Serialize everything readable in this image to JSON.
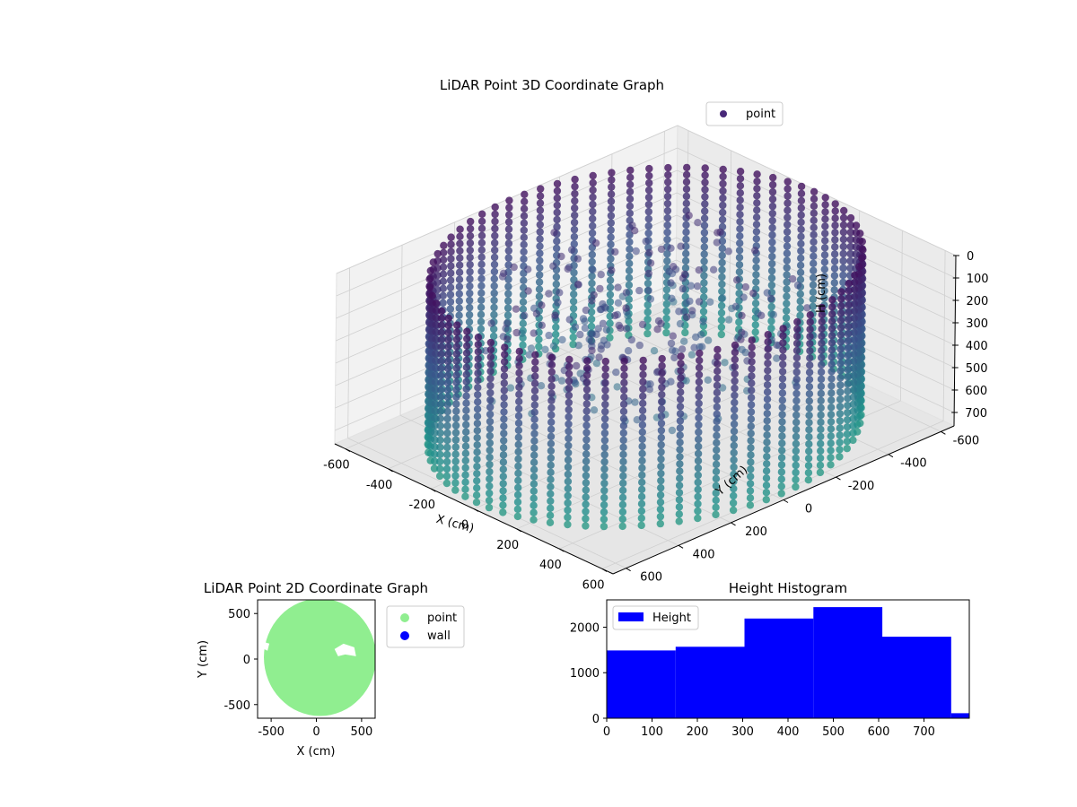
{
  "chart_data": [
    {
      "type": "scatter",
      "projection": "3d",
      "title": "LiDAR Point 3D Coordinate Graph",
      "xlabel": "X (cm)",
      "ylabel": "Y (cm)",
      "zlabel": "H (cm)",
      "xlim": [
        -650,
        650
      ],
      "ylim": [
        -650,
        650
      ],
      "zlim": [
        0,
        760
      ],
      "z_inverted": true,
      "xticks": [
        "-600",
        "-400",
        "-200",
        "0",
        "200",
        "400",
        "600"
      ],
      "yticks": [
        "-600",
        "-400",
        "-200",
        "0",
        "200",
        "400",
        "600"
      ],
      "zticks": [
        "0",
        "100",
        "200",
        "300",
        "400",
        "500",
        "600",
        "700"
      ],
      "colormap": "viridis",
      "legend": {
        "position": "top-right",
        "entries": [
          {
            "label": "point",
            "color": "#482878"
          }
        ]
      },
      "grid": true,
      "series": [
        {
          "name": "point",
          "shape": "cylindrical wall with partial ceiling points",
          "radius": 640,
          "height_range": [
            0,
            760
          ],
          "angle_step_deg": 5
        }
      ]
    },
    {
      "type": "scatter",
      "title": "LiDAR Point 2D Coordinate Graph",
      "xlabel": "X (cm)",
      "ylabel": "Y (cm)",
      "xlim": [
        -650,
        650
      ],
      "ylim": [
        -650,
        650
      ],
      "xticks": [
        "-500",
        "0",
        "500"
      ],
      "yticks": [
        "-500",
        "0",
        "500"
      ],
      "legend": {
        "position": "outside-right",
        "entries": [
          {
            "label": "point",
            "color": "#90ee90"
          },
          {
            "label": "wall",
            "color": "#0000ff"
          }
        ]
      },
      "grid": false,
      "series": [
        {
          "name": "point",
          "color": "#90ee90",
          "shape": "filled disc",
          "radius": 620
        },
        {
          "name": "wall",
          "color": "#0000ff",
          "points": []
        }
      ]
    },
    {
      "type": "histogram",
      "title": "Height Histogram",
      "xlabel": "",
      "ylabel": "",
      "xlim": [
        0,
        800
      ],
      "ylim": [
        0,
        2600
      ],
      "xticks": [
        "0",
        "100",
        "200",
        "300",
        "400",
        "500",
        "600",
        "700"
      ],
      "yticks": [
        "0",
        "1000",
        "2000"
      ],
      "legend": {
        "position": "top-left",
        "entries": [
          {
            "label": "Height",
            "color": "#0000ff"
          }
        ]
      },
      "grid": false,
      "series": [
        {
          "name": "Height",
          "color": "#0000ff",
          "bin_edges": [
            0,
            152,
            304,
            456,
            608,
            760,
            800
          ],
          "counts": [
            1490,
            1570,
            2190,
            2440,
            1790,
            110
          ]
        }
      ]
    }
  ]
}
